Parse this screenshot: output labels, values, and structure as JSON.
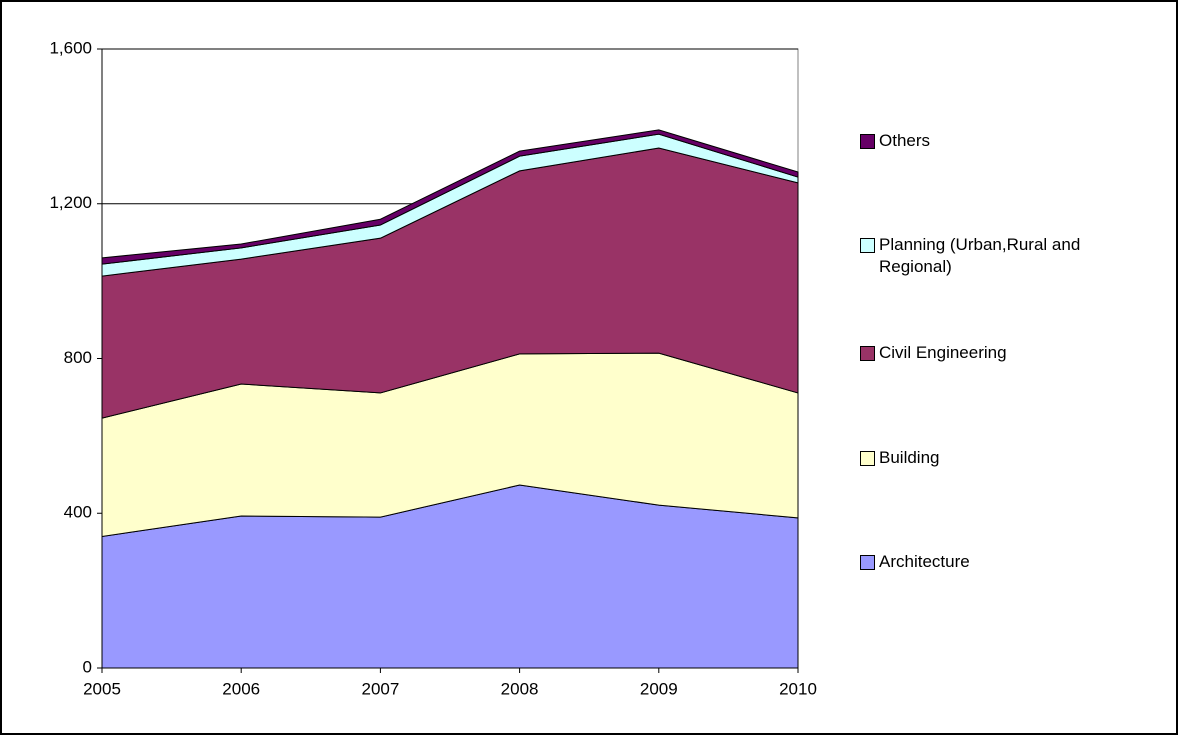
{
  "chart_data": {
    "type": "stacked_area",
    "x": [
      "2005",
      "2006",
      "2007",
      "2008",
      "2009",
      "2010"
    ],
    "series": [
      {
        "name": "Architecture",
        "color": "#9999ff",
        "values": [
          340,
          393,
          390,
          473,
          421,
          388
        ]
      },
      {
        "name": "Building",
        "color": "#ffffcc",
        "values": [
          306,
          341,
          321,
          339,
          393,
          323
        ]
      },
      {
        "name": "Civil Engineering",
        "color": "#993366",
        "values": [
          367,
          323,
          400,
          473,
          530,
          543
        ]
      },
      {
        "name": "Planning (Urban,Rural and Regional)",
        "color": "#ccffff",
        "values": [
          31,
          29,
          34,
          38,
          36,
          15
        ]
      },
      {
        "name": "Others",
        "color": "#660066",
        "values": [
          16,
          10,
          15,
          13,
          11,
          13
        ]
      }
    ],
    "ylim": [
      0,
      1600
    ],
    "yticks": [
      0,
      {
        "value": 400,
        "label": "400"
      },
      {
        "value": 800,
        "label": "800"
      },
      {
        "value": 1200,
        "label": "1,200"
      },
      {
        "value": 1600,
        "label": "1,600"
      }
    ],
    "grid": true,
    "legend": "right"
  }
}
